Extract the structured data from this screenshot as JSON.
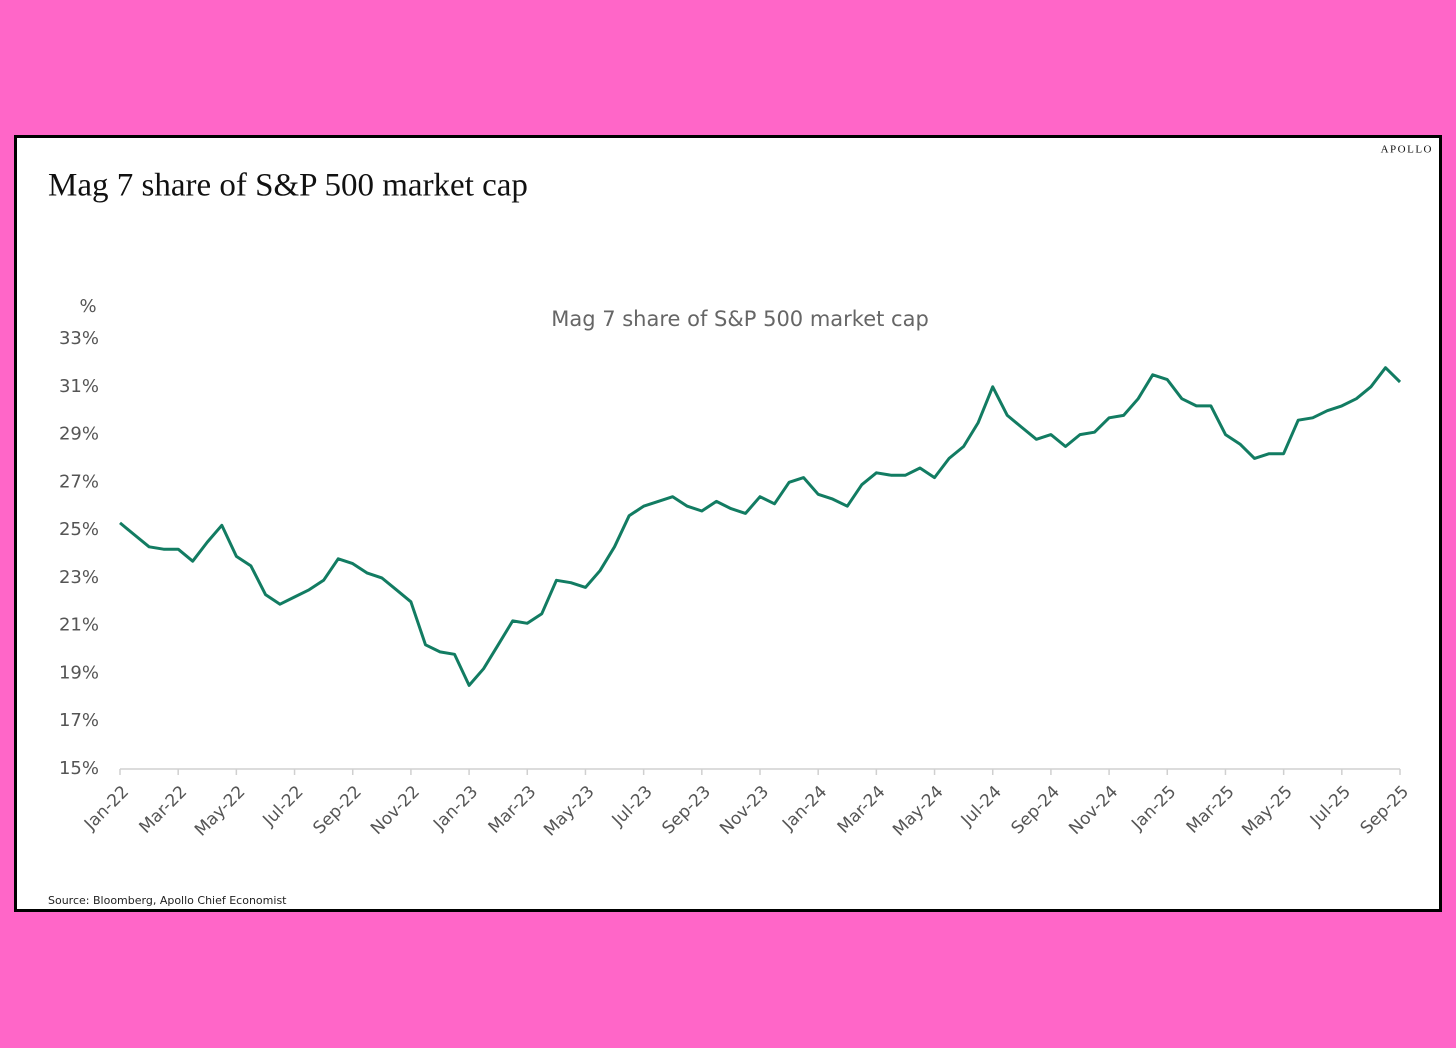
{
  "chart_data": {
    "type": "line",
    "title": "Mag 7 share of S&P 500 market cap",
    "brand": "APOLLO",
    "subtitle": "Mag 7 share of S&P 500 market cap",
    "y_label": "%",
    "source": "Source: Bloomberg, Apollo Chief Economist",
    "xticks": [
      "Jan-22",
      "Mar-22",
      "May-22",
      "Jul-22",
      "Sep-22",
      "Nov-22",
      "Jan-23",
      "Mar-23",
      "May-23",
      "Jul-23",
      "Sep-23",
      "Nov-23",
      "Jan-24",
      "Mar-24",
      "May-24",
      "Jul-24",
      "Sep-24",
      "Nov-24",
      "Jan-25",
      "Mar-25",
      "May-25",
      "Jul-25",
      "Sep-25"
    ],
    "ylim": [
      15,
      33
    ],
    "yticks": [
      {
        "value": 15,
        "label": "15%"
      },
      {
        "value": 17,
        "label": "17%"
      },
      {
        "value": 19,
        "label": "19%"
      },
      {
        "value": 21,
        "label": "21%"
      },
      {
        "value": 23,
        "label": "23%"
      },
      {
        "value": 25,
        "label": "25%"
      },
      {
        "value": 27,
        "label": "27%"
      },
      {
        "value": 29,
        "label": "29%"
      },
      {
        "value": 31,
        "label": "31%"
      },
      {
        "value": 33,
        "label": "33%"
      }
    ],
    "series": [
      {
        "name": "Mag 7 share of S&P 500 market cap",
        "color": "#127c62",
        "values": [
          25.3,
          24.8,
          24.3,
          24.2,
          24.2,
          23.7,
          24.5,
          25.2,
          23.9,
          23.5,
          22.3,
          21.9,
          22.2,
          22.5,
          22.9,
          23.8,
          23.6,
          23.2,
          23.0,
          22.5,
          22.0,
          20.2,
          19.9,
          19.8,
          18.5,
          19.2,
          20.2,
          21.2,
          21.1,
          21.5,
          22.9,
          22.8,
          22.6,
          23.3,
          24.3,
          25.6,
          26.0,
          26.2,
          26.4,
          26.0,
          25.8,
          26.2,
          25.9,
          25.7,
          26.4,
          26.1,
          27.0,
          27.2,
          26.5,
          26.3,
          26.0,
          26.9,
          27.4,
          27.3,
          27.3,
          27.6,
          27.2,
          28.0,
          28.5,
          29.5,
          31.0,
          29.8,
          29.3,
          28.8,
          29.0,
          28.5,
          29.0,
          29.1,
          29.7,
          29.8,
          30.5,
          31.5,
          31.3,
          30.5,
          30.2,
          30.2,
          29.0,
          28.6,
          28.0,
          28.2,
          28.2,
          29.6,
          29.7,
          30.0,
          30.2,
          30.5,
          31.0,
          31.8,
          31.2
        ]
      }
    ]
  }
}
